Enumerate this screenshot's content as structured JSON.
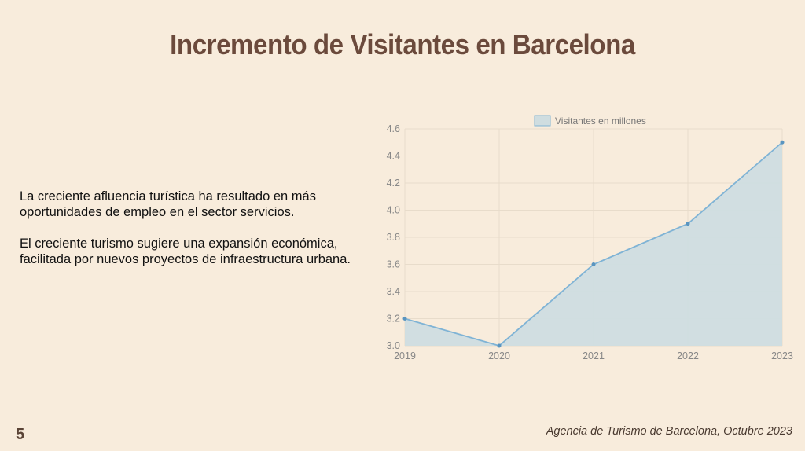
{
  "slide": {
    "title": "Incremento de Visitantes en Barcelona",
    "paragraphs": [
      "La creciente afluencia turística ha resultado en más oportunidades de empleo en el sector servicios.",
      "El creciente turismo sugiere una expansión económica, facilitada por nuevos proyectos de infraestructura urbana."
    ],
    "page_number": "5",
    "source": "Agencia de Turismo de Barcelona, Octubre 2023"
  },
  "colors": {
    "title": "#6b4a3c",
    "line": "#7fb3d5",
    "fill": "#cfdde0",
    "background": "#f8ecdc"
  },
  "chart_data": {
    "type": "area",
    "title": "",
    "xlabel": "",
    "ylabel": "",
    "categories": [
      "2019",
      "2020",
      "2021",
      "2022",
      "2023"
    ],
    "series": [
      {
        "name": "Visitantes en millones",
        "values": [
          3.2,
          3.0,
          3.6,
          3.9,
          4.5
        ]
      }
    ],
    "ylim": [
      3.0,
      4.6
    ],
    "yticks": [
      "3.0",
      "3.2",
      "3.4",
      "3.6",
      "3.8",
      "4.0",
      "4.2",
      "4.4",
      "4.6"
    ],
    "grid": true,
    "legend": "top-center"
  }
}
